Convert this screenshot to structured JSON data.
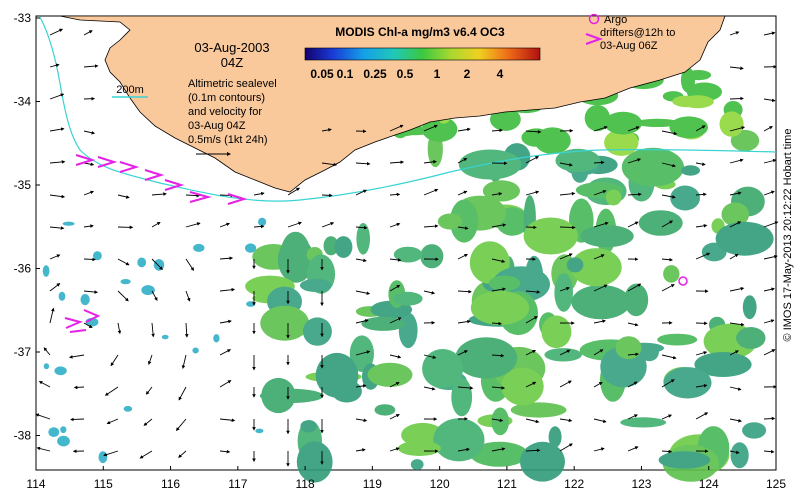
{
  "colorbar": {
    "title": "MODIS Chl-a mg/m3 v6.4 OC3",
    "ticks": [
      "0.05",
      "0.1",
      "0.25",
      "0.5",
      "1",
      "2",
      "4"
    ]
  },
  "date_label": "03-Aug-2003",
  "time_label": "04Z",
  "scale_label": "200m",
  "legend_text": [
    "Altimetric sealevel",
    "(0.1m contours)",
    "and velocity for",
    "03-Aug 04Z",
    "0.5m/s (1kt 24h)"
  ],
  "argo_legend": [
    "Argo",
    "drifters@12h to",
    "03-Aug 06Z"
  ],
  "credit": "© IMOS 17-May-2013 20:12:22 Hobart time",
  "axes": {
    "x_ticks": [
      "114",
      "115",
      "116",
      "117",
      "118",
      "119",
      "120",
      "121",
      "122",
      "123",
      "124",
      "125"
    ],
    "y_ticks": [
      "-33",
      "-34",
      "-35",
      "-36",
      "-37",
      "-38"
    ]
  },
  "colors": {
    "land": "#f9c89b",
    "current_path": "#39d3d3",
    "drifter": "#e620e6"
  }
}
